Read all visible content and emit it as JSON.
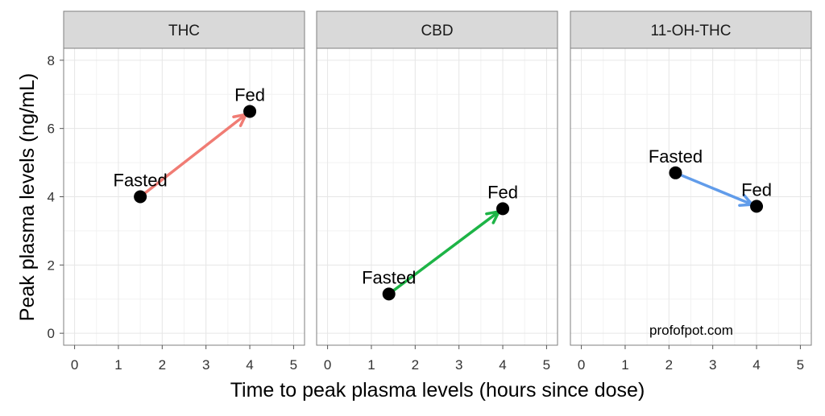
{
  "chart_data": {
    "type": "scatter",
    "xlabel": "Time to peak plasma levels (hours since dose)",
    "ylabel": "Peak plasma levels (ng/mL)",
    "xlim": [
      -0.25,
      5.25
    ],
    "ylim": [
      -0.35,
      8.35
    ],
    "x_ticks": [
      "0",
      "1",
      "2",
      "3",
      "4",
      "5"
    ],
    "y_ticks": [
      "0",
      "2",
      "4",
      "6",
      "8"
    ],
    "grid": true,
    "legend": "none",
    "watermark": "profofpot.com",
    "panels": [
      {
        "name": "THC",
        "arrow_color": "#F07C74",
        "points": [
          {
            "label": "Fasted",
            "x": 1.5,
            "y": 4.0
          },
          {
            "label": "Fed",
            "x": 4.0,
            "y": 6.5
          }
        ]
      },
      {
        "name": "CBD",
        "arrow_color": "#1DB446",
        "points": [
          {
            "label": "Fasted",
            "x": 1.4,
            "y": 1.15
          },
          {
            "label": "Fed",
            "x": 4.0,
            "y": 3.65
          }
        ]
      },
      {
        "name": "11-OH-THC",
        "arrow_color": "#619CEA",
        "points": [
          {
            "label": "Fasted",
            "x": 2.15,
            "y": 4.7
          },
          {
            "label": "Fed",
            "x": 4.0,
            "y": 3.72
          }
        ]
      }
    ]
  }
}
